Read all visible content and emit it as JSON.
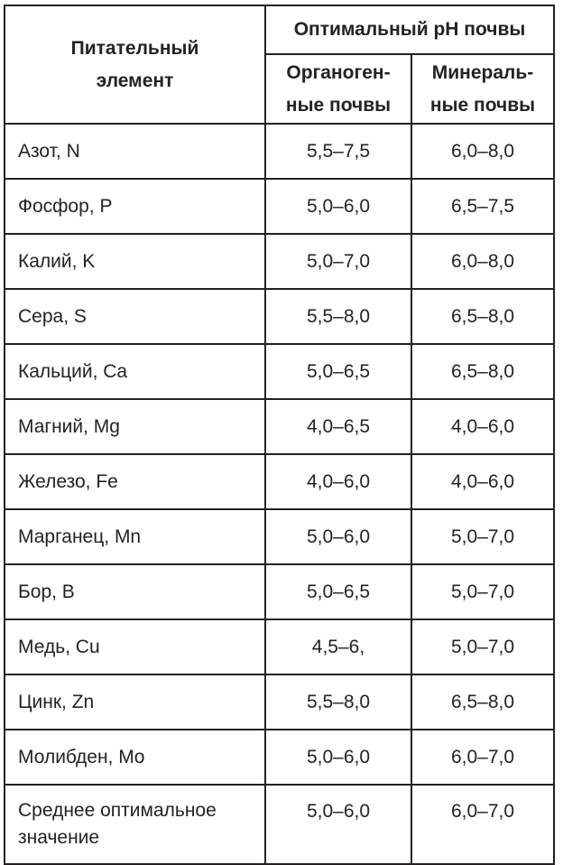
{
  "table": {
    "colors": {
      "border": "#232220",
      "text": "#232323",
      "background": "#ffffff"
    },
    "header": {
      "element_column": "Питательный\nэлемент",
      "ph_group": "Оптимальный pH почвы",
      "organogenic": "Органоген-\nные почвы",
      "mineral": "Минераль-\nные почвы"
    },
    "rows": [
      {
        "element": "Азот, N",
        "organogenic": "5,5–7,5",
        "mineral": "6,0–8,0"
      },
      {
        "element": "Фосфор, P",
        "organogenic": "5,0–6,0",
        "mineral": "6,5–7,5"
      },
      {
        "element": "Калий, K",
        "organogenic": "5,0–7,0",
        "mineral": "6,0–8,0"
      },
      {
        "element": "Сера, S",
        "organogenic": "5,5–8,0",
        "mineral": "6,5–8,0"
      },
      {
        "element": "Кальций, Ca",
        "organogenic": "5,0–6,5",
        "mineral": "6,5–8,0"
      },
      {
        "element": "Магний, Mg",
        "organogenic": "4,0–6,5",
        "mineral": "4,0–6,0"
      },
      {
        "element": "Железо, Fe",
        "organogenic": "4,0–6,0",
        "mineral": "4,0–6,0"
      },
      {
        "element": "Марганец, Mn",
        "organogenic": "5,0–6,0",
        "mineral": "5,0–7,0"
      },
      {
        "element": "Бор, B",
        "organogenic": "5,0–6,5",
        "mineral": "5,0–7,0"
      },
      {
        "element": "Медь, Cu",
        "organogenic": "4,5–6,",
        "mineral": "5,0–7,0"
      },
      {
        "element": "Цинк, Zn",
        "organogenic": "5,5–8,0",
        "mineral": "6,5–8,0"
      },
      {
        "element": "Молибден, Mo",
        "organogenic": "5,0–6,0",
        "mineral": "6,0–7,0"
      },
      {
        "element": "Среднее оптимальное значение",
        "organogenic": "5,0–6,0",
        "mineral": "6,0–7,0"
      }
    ]
  }
}
